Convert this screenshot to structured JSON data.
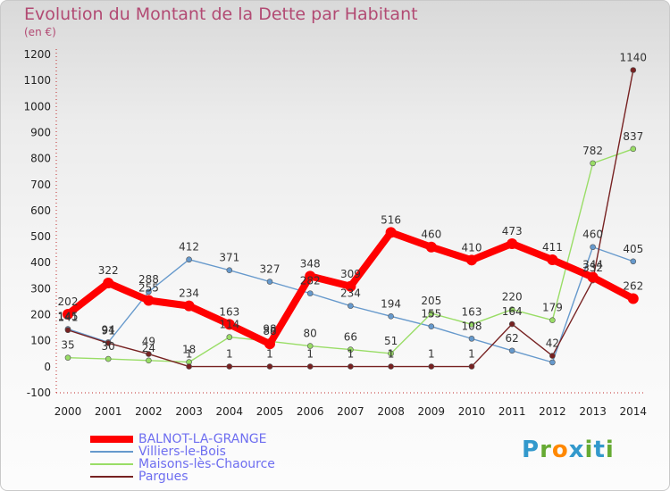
{
  "chart_data": {
    "type": "line",
    "title": "Evolution du Montant de la Dette par Habitant",
    "subtitle": "(en €)",
    "xlabel": "",
    "ylabel": "",
    "x": [
      "2000",
      "2001",
      "2002",
      "2003",
      "2004",
      "2005",
      "2006",
      "2007",
      "2008",
      "2009",
      "2010",
      "2011",
      "2012",
      "2013",
      "2014"
    ],
    "ylim": [
      -100,
      1200
    ],
    "yticks": [
      -100,
      0,
      100,
      200,
      300,
      400,
      500,
      600,
      700,
      800,
      900,
      1000,
      1100,
      1200
    ],
    "grid": false,
    "legend_position": "bottom-left",
    "series": [
      {
        "name": "BALNOT-LA-GRANGE",
        "color": "#ff0000",
        "values": [
          202,
          322,
          255,
          234,
          163,
          88,
          348,
          309,
          516,
          460,
          410,
          473,
          411,
          344,
          262
        ]
      },
      {
        "name": "Villiers-le-Bois",
        "color": "#6699cc",
        "values": [
          145,
          94,
          288,
          412,
          371,
          327,
          282,
          234,
          194,
          155,
          108,
          62,
          17,
          460,
          405
        ]
      },
      {
        "name": "Maisons-lès-Chaource",
        "color": "#99dd66",
        "values": [
          35,
          30,
          24,
          18,
          114,
          98,
          80,
          66,
          51,
          205,
          163,
          220,
          179,
          782,
          837
        ]
      },
      {
        "name": "Pargues",
        "color": "#772222",
        "values": [
          141,
          91,
          49,
          1,
          1,
          1,
          1,
          1,
          1,
          1,
          1,
          164,
          42,
          332,
          1140
        ]
      }
    ],
    "point_labels": {
      "BALNOT-LA-GRANGE": [
        "202",
        "322",
        "255",
        "234",
        "163",
        "88",
        "348",
        "309",
        "516",
        "460",
        "410",
        "473",
        "411",
        "344",
        "262"
      ],
      "Villiers-le-Bois": [
        "145",
        "94",
        "288",
        "412",
        "371",
        "327",
        "282",
        "234",
        "194",
        "155",
        "108",
        "62",
        "",
        "460",
        "405"
      ],
      "Maisons-lès-Chaource": [
        "35",
        "30",
        "24",
        "18",
        "114",
        "98",
        "80",
        "66",
        "51",
        "205",
        "163",
        "220",
        "179",
        "782",
        "837"
      ],
      "Pargues": [
        "141",
        "91",
        "49",
        "1",
        "1",
        "1",
        "1",
        "1",
        "1",
        "1",
        "1",
        "164",
        "42",
        "332",
        "1140"
      ]
    }
  },
  "logo": {
    "text": "Proxiti"
  }
}
